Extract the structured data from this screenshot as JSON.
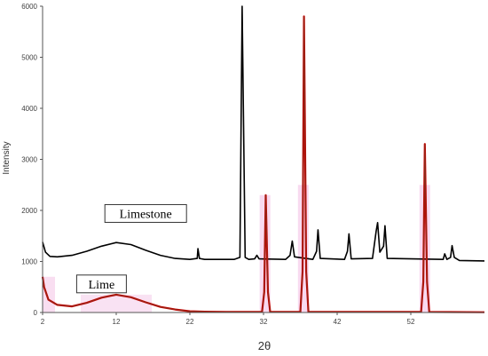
{
  "chart_data": {
    "type": "line",
    "xlabel": "2θ",
    "ylabel": "Intensity",
    "xlim": [
      2,
      62
    ],
    "ylim": [
      0,
      6000
    ],
    "x_ticks": [
      2,
      12,
      22,
      32,
      42,
      52
    ],
    "x_tick_labels": [
      "2",
      "12",
      "22",
      "32",
      "42",
      "52"
    ],
    "y_ticks": [
      0,
      1000,
      2000,
      3000,
      4000,
      5000,
      6000
    ],
    "y_tick_labels": [
      "0",
      "1000",
      "2000",
      "3000",
      "4000",
      "5000",
      "6000"
    ],
    "grid": false,
    "colors": {
      "limestone": "#000000",
      "lime_main": "#cc0000",
      "lime_overlay": "#8b2a18",
      "reference_bands": "#f7d6ee"
    },
    "series": [
      {
        "name": "Limestone",
        "baseline": 1050,
        "points": [
          [
            2,
            1380
          ],
          [
            2.4,
            1180
          ],
          [
            3,
            1100
          ],
          [
            4,
            1090
          ],
          [
            6,
            1120
          ],
          [
            8,
            1200
          ],
          [
            10,
            1300
          ],
          [
            12,
            1370
          ],
          [
            14,
            1330
          ],
          [
            16,
            1220
          ],
          [
            18,
            1120
          ],
          [
            20,
            1060
          ],
          [
            22,
            1040
          ],
          [
            23,
            1060
          ],
          [
            23.1,
            1250
          ],
          [
            23.3,
            1060
          ],
          [
            24,
            1040
          ],
          [
            28,
            1040
          ],
          [
            28.8,
            1080
          ],
          [
            29.1,
            6000
          ],
          [
            29.5,
            1080
          ],
          [
            30,
            1040
          ],
          [
            30.8,
            1050
          ],
          [
            31.1,
            1120
          ],
          [
            31.4,
            1050
          ],
          [
            35,
            1040
          ],
          [
            35.6,
            1120
          ],
          [
            35.9,
            1400
          ],
          [
            36.2,
            1090
          ],
          [
            38.7,
            1040
          ],
          [
            39.2,
            1200
          ],
          [
            39.4,
            1620
          ],
          [
            39.7,
            1060
          ],
          [
            43,
            1040
          ],
          [
            43.4,
            1200
          ],
          [
            43.6,
            1540
          ],
          [
            43.9,
            1050
          ],
          [
            46.8,
            1060
          ],
          [
            47.3,
            1600
          ],
          [
            47.5,
            1760
          ],
          [
            47.8,
            1180
          ],
          [
            48.3,
            1300
          ],
          [
            48.5,
            1700
          ],
          [
            48.8,
            1060
          ],
          [
            56.4,
            1040
          ],
          [
            56.6,
            1150
          ],
          [
            56.9,
            1040
          ],
          [
            57.4,
            1080
          ],
          [
            57.6,
            1310
          ],
          [
            57.9,
            1080
          ],
          [
            58.6,
            1020
          ],
          [
            62,
            1010
          ]
        ]
      },
      {
        "name": "Lime",
        "baseline": 0,
        "points": [
          [
            2,
            700
          ],
          [
            2.2,
            500
          ],
          [
            2.8,
            250
          ],
          [
            4,
            150
          ],
          [
            6,
            120
          ],
          [
            8,
            190
          ],
          [
            10,
            290
          ],
          [
            12,
            350
          ],
          [
            14,
            300
          ],
          [
            16,
            200
          ],
          [
            18,
            110
          ],
          [
            20,
            60
          ],
          [
            22,
            25
          ],
          [
            24,
            15
          ],
          [
            28,
            10
          ],
          [
            31.8,
            10
          ],
          [
            32.1,
            400
          ],
          [
            32.3,
            2300
          ],
          [
            32.6,
            400
          ],
          [
            32.9,
            10
          ],
          [
            37.0,
            10
          ],
          [
            37.3,
            800
          ],
          [
            37.5,
            5800
          ],
          [
            37.8,
            800
          ],
          [
            38.1,
            10
          ],
          [
            53.4,
            10
          ],
          [
            53.7,
            600
          ],
          [
            53.9,
            3300
          ],
          [
            54.2,
            600
          ],
          [
            54.5,
            10
          ],
          [
            62,
            5
          ]
        ]
      }
    ],
    "reference_peaks": [
      {
        "x": 32.2,
        "height": 2300
      },
      {
        "x": 37.4,
        "height": 2500
      },
      {
        "x": 53.9,
        "height": 2500
      }
    ],
    "annotations": [
      {
        "text": "Limestone",
        "x": 16,
        "y": 1940
      },
      {
        "text": "Lime",
        "x": 10,
        "y": 560
      }
    ]
  }
}
